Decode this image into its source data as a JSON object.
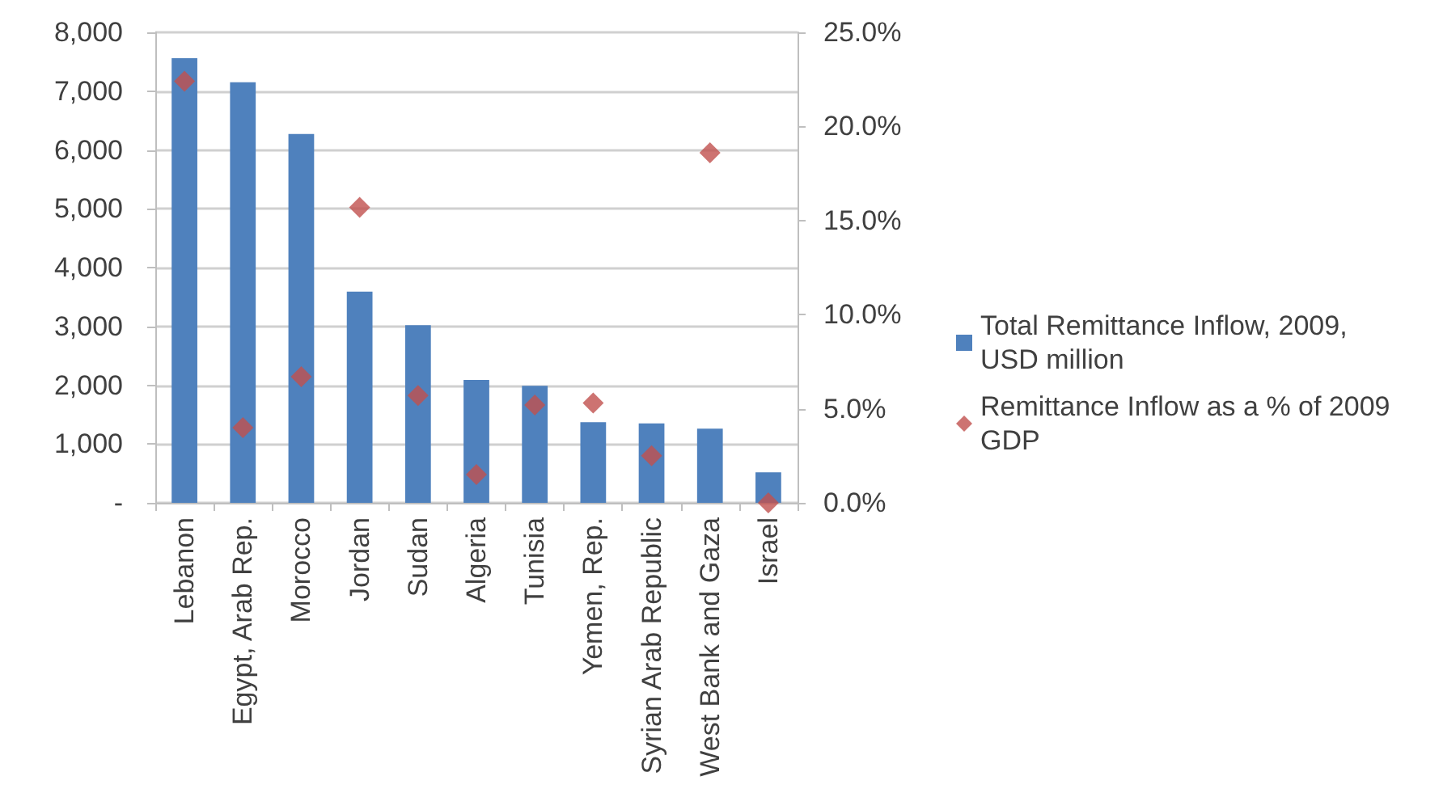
{
  "chart_data": {
    "type": "bar",
    "categories": [
      "Lebanon",
      "Egypt, Arab Rep.",
      "Morocco",
      "Jordan",
      "Sudan",
      "Algeria",
      "Tunisia",
      "Yemen, Rep.",
      "Syrian Arab Republic",
      "West Bank and Gaza",
      "Israel"
    ],
    "series": [
      {
        "name": "Total Remittance Inflow, 2009,USD million",
        "color": "#4f81bd",
        "values": [
          7560,
          7150,
          6270,
          3590,
          3020,
          2090,
          1990,
          1370,
          1350,
          1260,
          520
        ]
      },
      {
        "name": "Remittance Inflow as a % of 2009 GDP",
        "type": "scatter",
        "axis": "y2",
        "color": "#c0504d",
        "values": [
          22.4,
          4.0,
          6.7,
          15.7,
          5.7,
          1.5,
          5.2,
          5.3,
          2.5,
          18.6,
          0.0
        ]
      }
    ],
    "marker": "diamond",
    "ylim": [
      0,
      8000
    ],
    "yticks": [
      {
        "value": 0,
        "label": "-"
      },
      {
        "value": 1000,
        "label": "1,000"
      },
      {
        "value": 2000,
        "label": "2,000"
      },
      {
        "value": 3000,
        "label": "3,000"
      },
      {
        "value": 4000,
        "label": "4,000"
      },
      {
        "value": 5000,
        "label": "5,000"
      },
      {
        "value": 6000,
        "label": "6,000"
      },
      {
        "value": 7000,
        "label": "7,000"
      },
      {
        "value": 8000,
        "label": "8,000"
      }
    ],
    "y2lim": [
      0,
      25
    ],
    "y2ticks": [
      {
        "value": 0,
        "label": "0.0%"
      },
      {
        "value": 5,
        "label": "5.0%"
      },
      {
        "value": 10,
        "label": "10.0%"
      },
      {
        "value": 15,
        "label": "15.0%"
      },
      {
        "value": 20,
        "label": "20.0%"
      },
      {
        "value": 25,
        "label": "25.0%"
      }
    ],
    "grid": "y",
    "legend": "right"
  }
}
